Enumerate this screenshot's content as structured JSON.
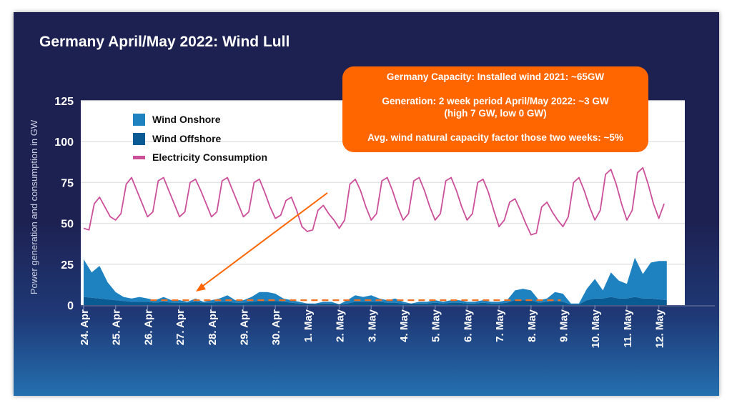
{
  "title": "Germany April/May 2022: Wind Lull",
  "info_box": {
    "line1": "Germany Capacity: Installed wind 2021: ~65GW",
    "line2": "Generation: 2 week period April/May 2022: ~3 GW",
    "line3": "(high 7 GW, low 0 GW)",
    "line4": "Avg. wind natural capacity factor those two weeks: ~5%"
  },
  "colors": {
    "onshore": "#1f82c0",
    "offshore": "#0a5a94",
    "consumption": "#cc4f9a",
    "annotation": "#ff6600",
    "background": "#1d2152"
  },
  "chart_data": {
    "type": "area",
    "title": "Germany April/May 2022: Wind Lull",
    "ylabel": "Power generation and consumption in GW",
    "xlabel": "",
    "ylim": [
      0,
      125
    ],
    "yticks": [
      0,
      25,
      50,
      75,
      100,
      125
    ],
    "xtick_labels": [
      "24. Apr",
      "25. Apr",
      "26. Apr",
      "27. Apr",
      "28. Apr",
      "29. Apr",
      "30. Apr",
      "1. May",
      "2. May",
      "3. May",
      "4. May",
      "5. May",
      "6. May",
      "7. May",
      "8. May",
      "9. May",
      "10. May",
      "11. May",
      "12. May"
    ],
    "grid": true,
    "stacked": true,
    "legend_position": "top-left",
    "legend": [
      "Wind Onshore",
      "Wind Offshore",
      "Electricity Consumption"
    ],
    "wind_sample_hours": [
      "00:00",
      "06:00",
      "12:00",
      "18:00"
    ],
    "consumption_sample_hours": [
      "00:00",
      "04:00",
      "08:00",
      "12:00",
      "16:00",
      "20:00"
    ],
    "series": [
      {
        "name": "Wind Onshore",
        "type": "area",
        "days": [
          {
            "date": "2022-04-24",
            "values": [
              23,
              15.5,
              20,
              10.5
            ]
          },
          {
            "date": "2022-04-25",
            "values": [
              5,
              2.5,
              2,
              3
            ]
          },
          {
            "date": "2022-04-26",
            "values": [
              2,
              1.5,
              3,
              1.5
            ]
          },
          {
            "date": "2022-04-27",
            "values": [
              1.5,
              0.5,
              2,
              0.5
            ]
          },
          {
            "date": "2022-04-28",
            "values": [
              1.5,
              2,
              4,
              1.5
            ]
          },
          {
            "date": "2022-04-29",
            "values": [
              1.5,
              3,
              5.5,
              5.5
            ]
          },
          {
            "date": "2022-04-30",
            "values": [
              4.5,
              2,
              1.5,
              1
            ]
          },
          {
            "date": "2022-05-01",
            "values": [
              0,
              0.5,
              1,
              1
            ]
          },
          {
            "date": "2022-05-02",
            "values": [
              0,
              2,
              4,
              3
            ]
          },
          {
            "date": "2022-05-03",
            "values": [
              4,
              2,
              1.5,
              2.5
            ]
          },
          {
            "date": "2022-05-04",
            "values": [
              1,
              0,
              1,
              1
            ]
          },
          {
            "date": "2022-05-05",
            "values": [
              1.5,
              1,
              1.5,
              1.5
            ]
          },
          {
            "date": "2022-05-06",
            "values": [
              1,
              1,
              1.5,
              1
            ]
          },
          {
            "date": "2022-05-07",
            "values": [
              1,
              1.5,
              6,
              7
            ]
          },
          {
            "date": "2022-05-08",
            "values": [
              6,
              1.5,
              2,
              5.5
            ]
          },
          {
            "date": "2022-05-09",
            "values": [
              5,
              0.5,
              0.5,
              7
            ]
          },
          {
            "date": "2022-05-10",
            "values": [
              12,
              5,
              15,
              11
            ]
          },
          {
            "date": "2022-05-11",
            "values": [
              9,
              24,
              15,
              22
            ]
          },
          {
            "date": "2022-05-12",
            "values": [
              23.5,
              24
            ]
          }
        ]
      },
      {
        "name": "Wind Offshore",
        "type": "area",
        "days": [
          {
            "date": "2022-04-24",
            "values": [
              5,
              4.5,
              4,
              3.5
            ]
          },
          {
            "date": "2022-04-25",
            "values": [
              3,
              2.5,
              2,
              2
            ]
          },
          {
            "date": "2022-04-26",
            "values": [
              2,
              1.5,
              2,
              1.5
            ]
          },
          {
            "date": "2022-04-27",
            "values": [
              1.5,
              1.5,
              2,
              1.5
            ]
          },
          {
            "date": "2022-04-28",
            "values": [
              1.5,
              2,
              2,
              1.5
            ]
          },
          {
            "date": "2022-04-29",
            "values": [
              1.5,
              2,
              2.5,
              2.5
            ]
          },
          {
            "date": "2022-04-30",
            "values": [
              2.5,
              2,
              1.5,
              1
            ]
          },
          {
            "date": "2022-05-01",
            "values": [
              1,
              0.5,
              1,
              1
            ]
          },
          {
            "date": "2022-05-02",
            "values": [
              0.5,
              1,
              2,
              2
            ]
          },
          {
            "date": "2022-05-03",
            "values": [
              2,
              2,
              1.5,
              1.5
            ]
          },
          {
            "date": "2022-05-04",
            "values": [
              1,
              1,
              1,
              1
            ]
          },
          {
            "date": "2022-05-05",
            "values": [
              1.5,
              1,
              1.5,
              1.5
            ]
          },
          {
            "date": "2022-05-06",
            "values": [
              1,
              1,
              1.5,
              1
            ]
          },
          {
            "date": "2022-05-07",
            "values": [
              1,
              1.5,
              3,
              3
            ]
          },
          {
            "date": "2022-05-08",
            "values": [
              3,
              1.5,
              2,
              2.5
            ]
          },
          {
            "date": "2022-05-09",
            "values": [
              2,
              0.5,
              0.5,
              3
            ]
          },
          {
            "date": "2022-05-10",
            "values": [
              4,
              4,
              5,
              4
            ]
          },
          {
            "date": "2022-05-11",
            "values": [
              4,
              5,
              4,
              4
            ]
          },
          {
            "date": "2022-05-12",
            "values": [
              3.5,
              3
            ]
          }
        ]
      },
      {
        "name": "Electricity Consumption",
        "type": "line",
        "days": [
          {
            "date": "2022-04-24",
            "values": [
              47,
              46,
              62,
              66,
              60,
              54
            ]
          },
          {
            "date": "2022-04-25",
            "values": [
              52,
              56,
              74,
              78,
              70,
              62
            ]
          },
          {
            "date": "2022-04-26",
            "values": [
              54,
              57,
              76,
              78,
              70,
              62
            ]
          },
          {
            "date": "2022-04-27",
            "values": [
              54,
              57,
              75,
              77,
              70,
              62
            ]
          },
          {
            "date": "2022-04-28",
            "values": [
              54,
              57,
              76,
              78,
              70,
              62
            ]
          },
          {
            "date": "2022-04-29",
            "values": [
              54,
              57,
              75,
              77,
              69,
              60
            ]
          },
          {
            "date": "2022-04-30",
            "values": [
              53,
              55,
              64,
              66,
              58,
              48
            ]
          },
          {
            "date": "2022-05-01",
            "values": [
              45,
              46,
              58,
              61,
              56,
              52
            ]
          },
          {
            "date": "2022-05-02",
            "values": [
              47,
              52,
              74,
              77,
              70,
              60
            ]
          },
          {
            "date": "2022-05-03",
            "values": [
              52,
              56,
              76,
              78,
              70,
              60
            ]
          },
          {
            "date": "2022-05-04",
            "values": [
              52,
              56,
              76,
              78,
              70,
              60
            ]
          },
          {
            "date": "2022-05-05",
            "values": [
              52,
              56,
              76,
              78,
              70,
              60
            ]
          },
          {
            "date": "2022-05-06",
            "values": [
              52,
              56,
              75,
              77,
              69,
              58
            ]
          },
          {
            "date": "2022-05-07",
            "values": [
              48,
              52,
              63,
              65,
              58,
              50
            ]
          },
          {
            "date": "2022-05-08",
            "values": [
              43,
              44,
              60,
              63,
              57,
              52
            ]
          },
          {
            "date": "2022-05-09",
            "values": [
              48,
              54,
              75,
              78,
              70,
              60
            ]
          },
          {
            "date": "2022-05-10",
            "values": [
              52,
              58,
              80,
              83,
              74,
              62
            ]
          },
          {
            "date": "2022-05-11",
            "values": [
              52,
              58,
              81,
              84,
              74,
              62
            ]
          },
          {
            "date": "2022-05-12",
            "values": [
              53,
              62
            ]
          }
        ]
      }
    ],
    "annotations": {
      "average_line_gw": 3,
      "average_line_range": [
        "2022-04-26",
        "2022-05-09"
      ]
    }
  }
}
